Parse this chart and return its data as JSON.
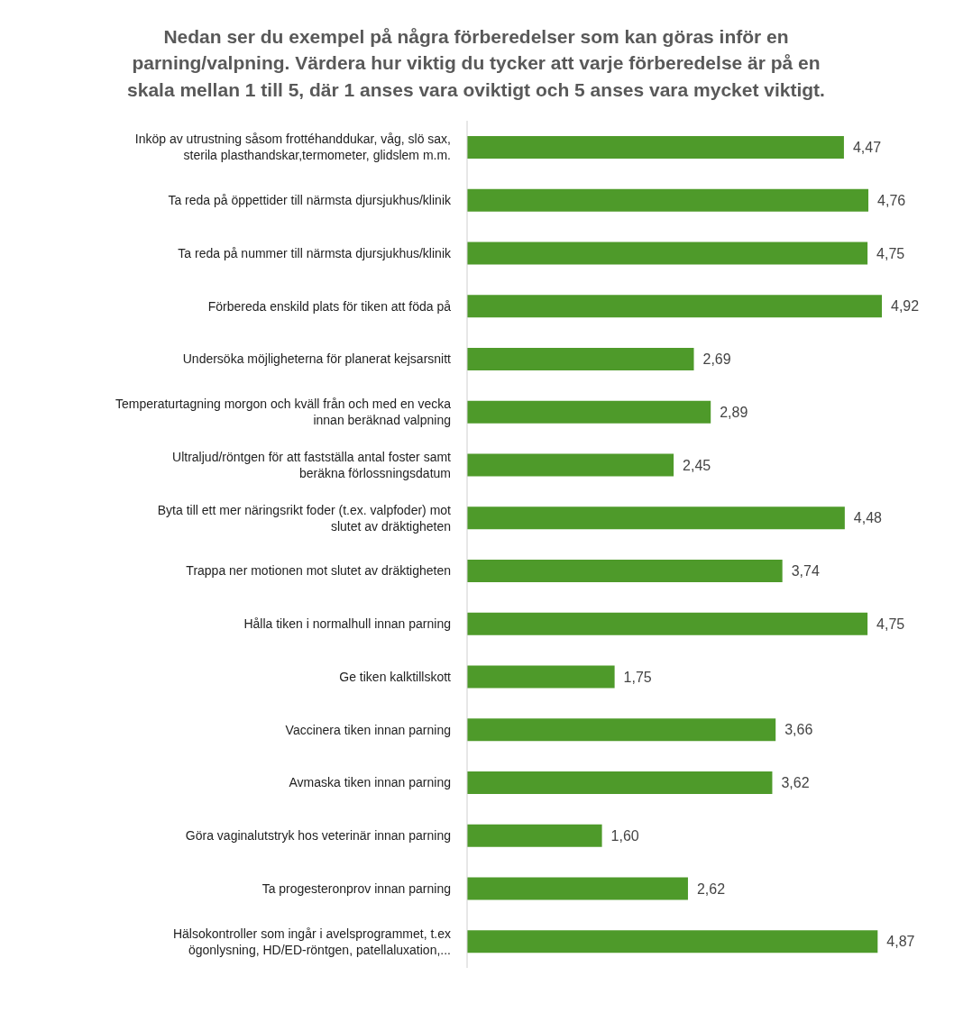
{
  "chart_data": {
    "type": "bar",
    "orientation": "horizontal",
    "title": "Nedan ser du exempel på några förberedelser som kan göras inför en parning/valpning. Värdera hur viktig du tycker att varje förberedelse är på en skala mellan 1 till 5, där 1 anses vara oviktigt och 5 anses vara mycket viktigt.",
    "categories": [
      "Inköp av utrustning såsom frottéhanddukar, våg, slö sax, sterila plasthandskar,termometer, glidslem m.m.",
      "Ta reda på öppettider till närmsta djursjukhus/klinik",
      "Ta reda på nummer till närmsta djursjukhus/klinik",
      "Förbereda enskild plats för tiken att föda på",
      "Undersöka möjligheterna för planerat kejsarsnitt",
      "Temperaturtagning morgon och kväll från och med en vecka innan beräknad valpning",
      "Ultraljud/röntgen för att fastställa antal foster samt beräkna förlossningsdatum",
      "Byta till ett mer näringsrikt foder (t.ex. valpfoder) mot slutet av dräktigheten",
      "Trappa ner motionen mot slutet av dräktigheten",
      "Hålla tiken i normalhull innan parning",
      "Ge tiken kalktillskott",
      "Vaccinera tiken innan parning",
      "Avmaska tiken innan parning",
      "Göra vaginalutstryk hos veterinär innan parning",
      "Ta progesteronprov innan parning",
      "Hälsokontroller som ingår i avelsprogrammet, t.ex ögonlysning, HD/ED-röntgen, patellaluxation,..."
    ],
    "values": [
      4.47,
      4.76,
      4.75,
      4.92,
      2.69,
      2.89,
      2.45,
      4.48,
      3.74,
      4.75,
      1.75,
      3.66,
      3.62,
      1.6,
      2.62,
      4.87
    ],
    "value_labels": [
      "4,47",
      "4,76",
      "4,75",
      "4,92",
      "2,69",
      "2,89",
      "2,45",
      "4,48",
      "3,74",
      "4,75",
      "1,75",
      "3,66",
      "3,62",
      "1,60",
      "2,62",
      "4,87"
    ],
    "color": "#4e9a2a",
    "tick_labels": "y"
  }
}
